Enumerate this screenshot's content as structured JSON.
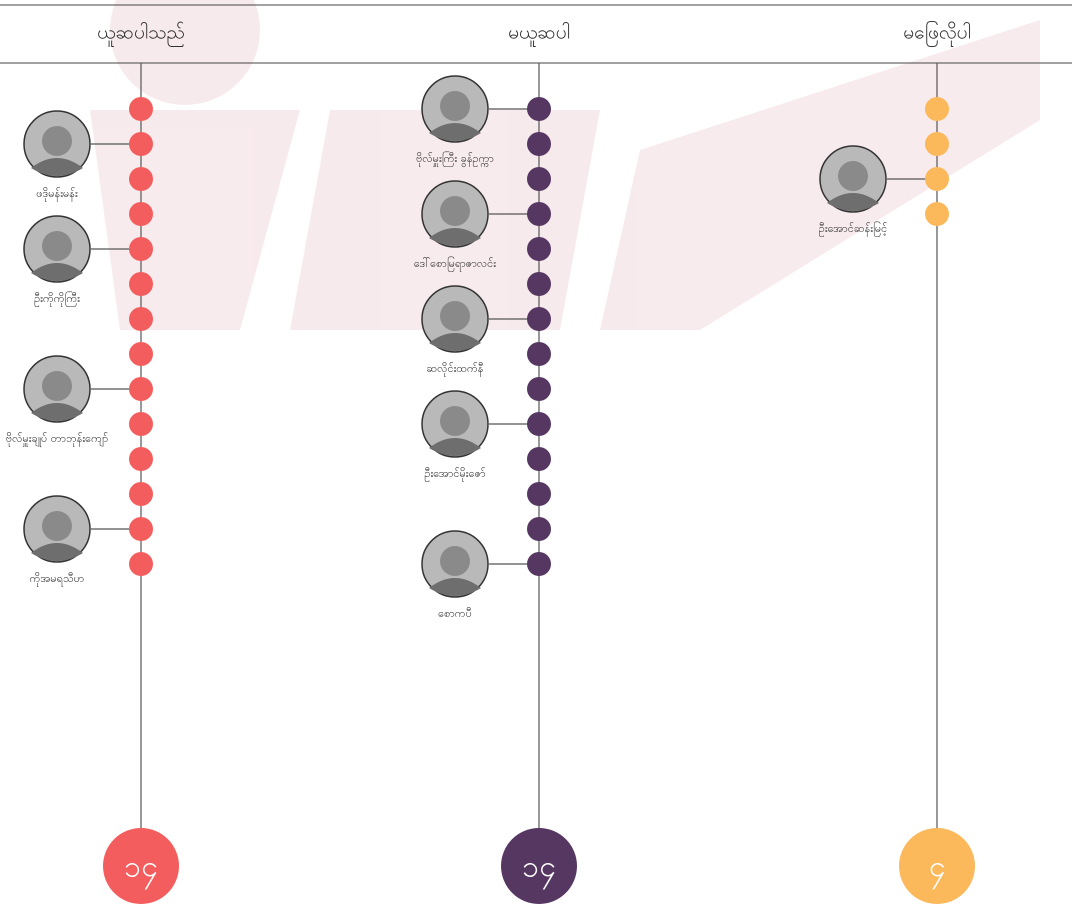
{
  "columns": [
    {
      "header": "ယူဆပါသည်",
      "color": "#f45d5d",
      "dots": 14,
      "total": "၁၄",
      "people": [
        {
          "name": "ဖဒိုမန်းမန်း",
          "dot": 1
        },
        {
          "name": "ဦးကိုကိုကြီး",
          "dot": 4
        },
        {
          "name": "ဗိုလ်မှူးချုပ် တာဘုန်းကျော်",
          "dot": 8
        },
        {
          "name": "ကိုအမရသီဟ",
          "dot": 12
        }
      ]
    },
    {
      "header": "မယူဆပါ",
      "color": "#563762",
      "dots": 14,
      "total": "၁၄",
      "people": [
        {
          "name": "ဗိုလ်မှူးကြီး ခွန်ဥက္ကာ",
          "dot": 0
        },
        {
          "name": "ဒေါ်စောမြရာဇာလင်း",
          "dot": 3
        },
        {
          "name": "ဆလိုင်းထက်နီ",
          "dot": 6
        },
        {
          "name": "ဦးအောင်မိုးဇော်",
          "dot": 9
        },
        {
          "name": "စောကပီ",
          "dot": 13
        }
      ]
    },
    {
      "header": "မဖြေလိုပါ",
      "color": "#fbb95c",
      "dots": 4,
      "total": "၄",
      "people": [
        {
          "name": "ဦးအောင်ဆန်းမြင့်",
          "dot": 2
        }
      ]
    }
  ]
}
